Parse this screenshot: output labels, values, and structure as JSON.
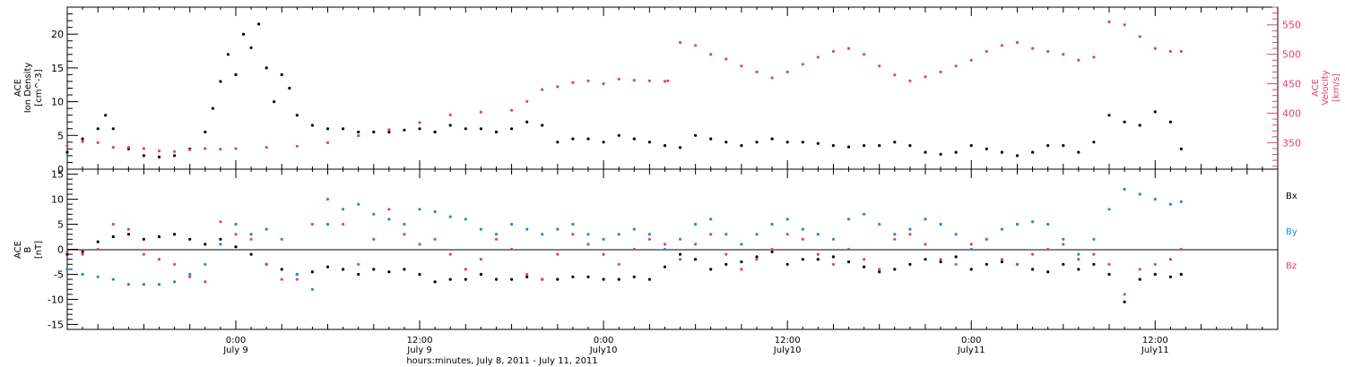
{
  "colors": {
    "black": "#000000",
    "pink": "#e8406b",
    "blue": "#1e88e5"
  },
  "x_axis": {
    "title": "hours:minutes, July  8, 2011 - July 11, 2011",
    "ticks": [
      {
        "hours": 24,
        "line1": "0:00",
        "line2": "July 9"
      },
      {
        "hours": 36,
        "line1": "12:00",
        "line2": "July 9"
      },
      {
        "hours": 48,
        "line1": "0:00",
        "line2": "July10"
      },
      {
        "hours": 60,
        "line1": "12:00",
        "line2": "July10"
      },
      {
        "hours": 72,
        "line1": "0:00",
        "line2": "July11"
      },
      {
        "hours": 84,
        "line1": "12:00",
        "line2": "July11"
      }
    ],
    "range_hours": [
      13.0,
      92.0
    ]
  },
  "chart_data": [
    {
      "type": "scatter",
      "panel": "top",
      "x_unit": "hours since 2011-07-08 00:00",
      "ylabel_left": [
        "ACE",
        "Ion Density",
        "[cm^-3]"
      ],
      "ylabel_right": [
        "ACE",
        "Velocity",
        "[km/s]"
      ],
      "left_axis": {
        "ylim": [
          0,
          24
        ],
        "ticks": [
          0,
          5,
          10,
          15,
          20
        ]
      },
      "right_axis": {
        "ylim": [
          305,
          580
        ],
        "ticks": [
          350,
          400,
          450,
          500,
          550
        ]
      },
      "series": [
        {
          "axis": "left",
          "color": "#000000",
          "x": [
            13.0,
            14.0,
            15.0,
            15.5,
            16.0,
            17.0,
            18.0,
            19.0,
            20.0,
            21.0,
            22.0,
            22.5,
            23.0,
            23.5,
            24.0,
            24.5,
            25.0,
            25.5,
            26.0,
            26.5,
            27.0,
            27.5,
            28.0,
            29.0,
            30.0,
            31.0,
            32.0,
            33.0,
            34.0,
            35.0,
            36.0,
            37.0,
            38.0,
            39.0,
            40.0,
            41.0,
            42.0,
            43.0,
            44.0,
            45.0,
            46.0,
            47.0,
            48.0,
            49.0,
            50.0,
            51.0,
            52.0,
            53.0,
            54.0,
            55.0,
            56.0,
            57.0,
            58.0,
            59.0,
            60.0,
            61.0,
            62.0,
            63.0,
            64.0,
            65.0,
            66.0,
            67.0,
            68.0,
            69.0,
            70.0,
            71.0,
            72.0,
            73.0,
            74.0,
            75.0,
            76.0,
            77.0,
            78.0,
            79.0,
            80.0,
            81.0,
            82.0,
            83.0,
            84.0,
            85.0,
            85.7
          ],
          "y": [
            2.5,
            4.5,
            6.0,
            8.0,
            6.0,
            3.0,
            2.0,
            1.8,
            2.0,
            3.0,
            5.5,
            9.0,
            13.0,
            17.0,
            14.0,
            20.0,
            18.0,
            21.5,
            15.0,
            10.0,
            14.0,
            12.0,
            8.0,
            6.5,
            6.0,
            6.0,
            5.5,
            5.5,
            5.5,
            5.8,
            6.0,
            5.5,
            6.5,
            6.0,
            6.0,
            5.5,
            6.0,
            7.0,
            6.5,
            4.0,
            4.5,
            4.5,
            4.0,
            5.0,
            4.5,
            4.0,
            3.5,
            3.2,
            5.0,
            4.5,
            4.0,
            3.5,
            4.0,
            4.5,
            4.0,
            4.0,
            3.8,
            3.5,
            3.3,
            3.5,
            3.5,
            4.0,
            3.5,
            2.5,
            2.2,
            2.5,
            3.5,
            3.0,
            2.5,
            2.0,
            2.5,
            3.5,
            3.5,
            2.5,
            4.0,
            8.0,
            7.0,
            6.5,
            8.5,
            7.0,
            3.0
          ]
        },
        {
          "axis": "right",
          "color": "#e8406b",
          "x": [
            13.0,
            14.0,
            15.0,
            16.0,
            17.0,
            18.0,
            19.0,
            20.0,
            21.0,
            22.0,
            23.0,
            24.0,
            26.0,
            28.0,
            30.0,
            32.0,
            34.0,
            36.0,
            38.0,
            40.0,
            42.0,
            43.0,
            44.0,
            45.0,
            46.0,
            47.0,
            48.0,
            49.0,
            50.0,
            51.0,
            52.0,
            52.2,
            53.0,
            54.0,
            55.0,
            56.0,
            57.0,
            58.0,
            59.0,
            60.0,
            61.0,
            62.0,
            63.0,
            64.0,
            65.0,
            66.0,
            67.0,
            68.0,
            69.0,
            70.0,
            71.0,
            72.0,
            73.0,
            74.0,
            75.0,
            76.0,
            77.0,
            78.0,
            79.0,
            80.0,
            81.0,
            82.0,
            83.0,
            84.0,
            85.0,
            85.7
          ],
          "y": [
            345,
            352,
            350,
            342,
            342,
            340,
            336,
            335,
            338,
            340,
            339,
            340,
            342,
            344,
            350,
            362,
            372,
            384,
            397,
            402,
            405,
            420,
            440,
            445,
            452,
            455,
            450,
            458,
            456,
            455,
            454,
            455,
            520,
            515,
            500,
            492,
            480,
            470,
            460,
            470,
            483,
            495,
            505,
            510,
            500,
            480,
            465,
            455,
            462,
            470,
            480,
            490,
            505,
            515,
            520,
            510,
            505,
            500,
            490,
            495,
            555,
            550,
            530,
            510,
            505,
            505
          ]
        }
      ]
    },
    {
      "type": "scatter",
      "panel": "bottom",
      "x_unit": "hours since 2011-07-08 00:00",
      "ylabel_left": [
        "ACE",
        "B",
        "[nT]"
      ],
      "left_axis": {
        "ylim": [
          -16,
          16
        ],
        "ticks": [
          -15,
          -10,
          -5,
          0,
          5,
          10,
          15
        ]
      },
      "zero_line": true,
      "series": [
        {
          "name": "Bx",
          "color": "#000000",
          "x": [
            13.0,
            14.0,
            15.0,
            16.0,
            17.0,
            18.0,
            19.0,
            20.0,
            21.0,
            22.0,
            23.0,
            24.0,
            25.0,
            26.0,
            27.0,
            28.0,
            29.0,
            30.0,
            31.0,
            32.0,
            33.0,
            34.0,
            35.0,
            36.0,
            37.0,
            38.0,
            39.0,
            40.0,
            41.0,
            42.0,
            43.0,
            44.0,
            45.0,
            46.0,
            47.0,
            48.0,
            49.0,
            50.0,
            51.0,
            52.0,
            53.0,
            54.0,
            55.0,
            56.0,
            57.0,
            58.0,
            59.0,
            60.0,
            61.0,
            62.0,
            63.0,
            64.0,
            65.0,
            66.0,
            67.0,
            68.0,
            69.0,
            70.0,
            71.0,
            72.0,
            73.0,
            74.0,
            75.0,
            76.0,
            77.0,
            78.0,
            79.0,
            80.0,
            81.0,
            82.0,
            83.0,
            84.0,
            85.0,
            85.7
          ],
          "y": [
            -1.0,
            -0.5,
            1.5,
            2.5,
            3.0,
            2.0,
            2.5,
            3.0,
            2.0,
            1.0,
            2.0,
            0.5,
            -1.0,
            -3.0,
            -4.0,
            -5.0,
            -4.5,
            -3.5,
            -4.0,
            -5.0,
            -4.0,
            -4.5,
            -4.0,
            -5.0,
            -6.5,
            -6.0,
            -6.0,
            -5.0,
            -6.0,
            -6.0,
            -5.5,
            -6.0,
            -6.0,
            -5.5,
            -5.5,
            -6.0,
            -6.0,
            -5.5,
            -6.0,
            -3.5,
            -1.0,
            -2.0,
            -4.0,
            -3.0,
            -2.5,
            -1.5,
            -0.5,
            -3.0,
            -2.0,
            -2.0,
            -1.5,
            -2.5,
            -3.5,
            -4.5,
            -4.0,
            -3.0,
            -2.0,
            -2.5,
            -1.5,
            -4.0,
            -3.0,
            -2.5,
            -3.0,
            -4.0,
            -4.5,
            -3.0,
            -4.0,
            -3.0,
            -5.0,
            -10.5,
            -6.0,
            -5.0,
            -5.5,
            -5.0
          ]
        },
        {
          "name": "By",
          "color": "#1e88e5",
          "x": [
            13.0,
            14.0,
            15.0,
            16.0,
            17.0,
            18.0,
            19.0,
            20.0,
            21.0,
            22.0,
            23.0,
            24.0,
            25.0,
            26.0,
            27.0,
            28.0,
            29.0,
            30.0,
            31.0,
            32.0,
            33.0,
            34.0,
            35.0,
            36.0,
            37.0,
            38.0,
            39.0,
            40.0,
            41.0,
            42.0,
            43.0,
            44.0,
            45.0,
            46.0,
            47.0,
            48.0,
            49.0,
            50.0,
            51.0,
            52.0,
            53.0,
            54.0,
            55.0,
            56.0,
            57.0,
            58.0,
            59.0,
            60.0,
            61.0,
            62.0,
            63.0,
            64.0,
            65.0,
            66.0,
            67.0,
            68.0,
            69.0,
            70.0,
            71.0,
            72.0,
            73.0,
            74.0,
            75.0,
            76.0,
            77.0,
            78.0,
            79.0,
            80.0,
            81.0,
            82.0,
            83.0,
            84.0,
            85.0,
            85.7
          ],
          "y": [
            -4.0,
            -5.0,
            -5.5,
            -6.0,
            -7.0,
            -7.0,
            -7.0,
            -6.5,
            -5.0,
            -3.0,
            1.0,
            5.0,
            3.0,
            4.0,
            2.0,
            -5.0,
            -8.0,
            5.0,
            8.0,
            9.0,
            7.0,
            6.0,
            5.0,
            8.0,
            7.5,
            6.5,
            6.0,
            4.0,
            3.0,
            5.0,
            4.0,
            3.0,
            4.0,
            5.0,
            3.0,
            2.0,
            3.0,
            4.0,
            3.0,
            0.0,
            2.0,
            5.0,
            6.0,
            3.0,
            1.0,
            3.0,
            5.0,
            6.0,
            4.0,
            3.0,
            2.0,
            6.0,
            7.0,
            5.0,
            3.0,
            4.0,
            6.0,
            5.0,
            3.0,
            0.0,
            2.0,
            4.0,
            5.0,
            5.5,
            5.0,
            2.0,
            -1.0,
            2.0,
            8.0,
            12.0,
            11.0,
            10.0,
            9.0,
            9.5
          ]
        },
        {
          "name": "Bz",
          "color": "#e8406b",
          "x": [
            13.0,
            14.0,
            15.0,
            16.0,
            17.0,
            18.0,
            19.0,
            20.0,
            21.0,
            22.0,
            23.0,
            24.0,
            25.0,
            26.0,
            27.0,
            28.0,
            29.0,
            30.0,
            31.0,
            32.0,
            33.0,
            34.0,
            35.0,
            36.0,
            37.0,
            38.0,
            39.0,
            40.0,
            41.0,
            42.0,
            43.0,
            44.0,
            45.0,
            46.0,
            47.0,
            48.0,
            49.0,
            50.0,
            51.0,
            52.0,
            53.0,
            54.0,
            55.0,
            56.0,
            57.0,
            58.0,
            59.0,
            60.0,
            61.0,
            62.0,
            63.0,
            64.0,
            65.0,
            66.0,
            67.0,
            68.0,
            69.0,
            70.0,
            71.0,
            72.0,
            73.0,
            74.0,
            75.0,
            76.0,
            77.0,
            78.0,
            79.0,
            80.0,
            81.0,
            82.0,
            83.0,
            84.0,
            85.0,
            85.7
          ],
          "y": [
            -0.5,
            -1.0,
            0.0,
            5.0,
            4.0,
            -1.0,
            -2.0,
            -3.0,
            -5.5,
            -6.5,
            5.5,
            3.0,
            2.0,
            -3.0,
            -6.0,
            -6.0,
            5.0,
            10.0,
            5.0,
            -3.0,
            2.0,
            8.0,
            3.0,
            1.0,
            2.0,
            -1.0,
            -4.0,
            -2.0,
            2.0,
            0.0,
            -5.0,
            -6.0,
            -1.0,
            3.0,
            1.0,
            -1.0,
            -3.0,
            0.0,
            2.0,
            1.0,
            -2.0,
            1.0,
            3.0,
            -1.0,
            -4.0,
            -2.0,
            0.0,
            3.0,
            2.0,
            -1.0,
            -3.0,
            0.0,
            -2.0,
            -4.0,
            2.0,
            3.0,
            1.0,
            -2.0,
            -3.0,
            1.0,
            2.0,
            -2.0,
            -3.0,
            -1.0,
            0.0,
            1.0,
            -2.0,
            -1.0,
            -3.0,
            -9.0,
            -4.0,
            -3.0,
            -2.0,
            0.0
          ]
        }
      ]
    }
  ]
}
